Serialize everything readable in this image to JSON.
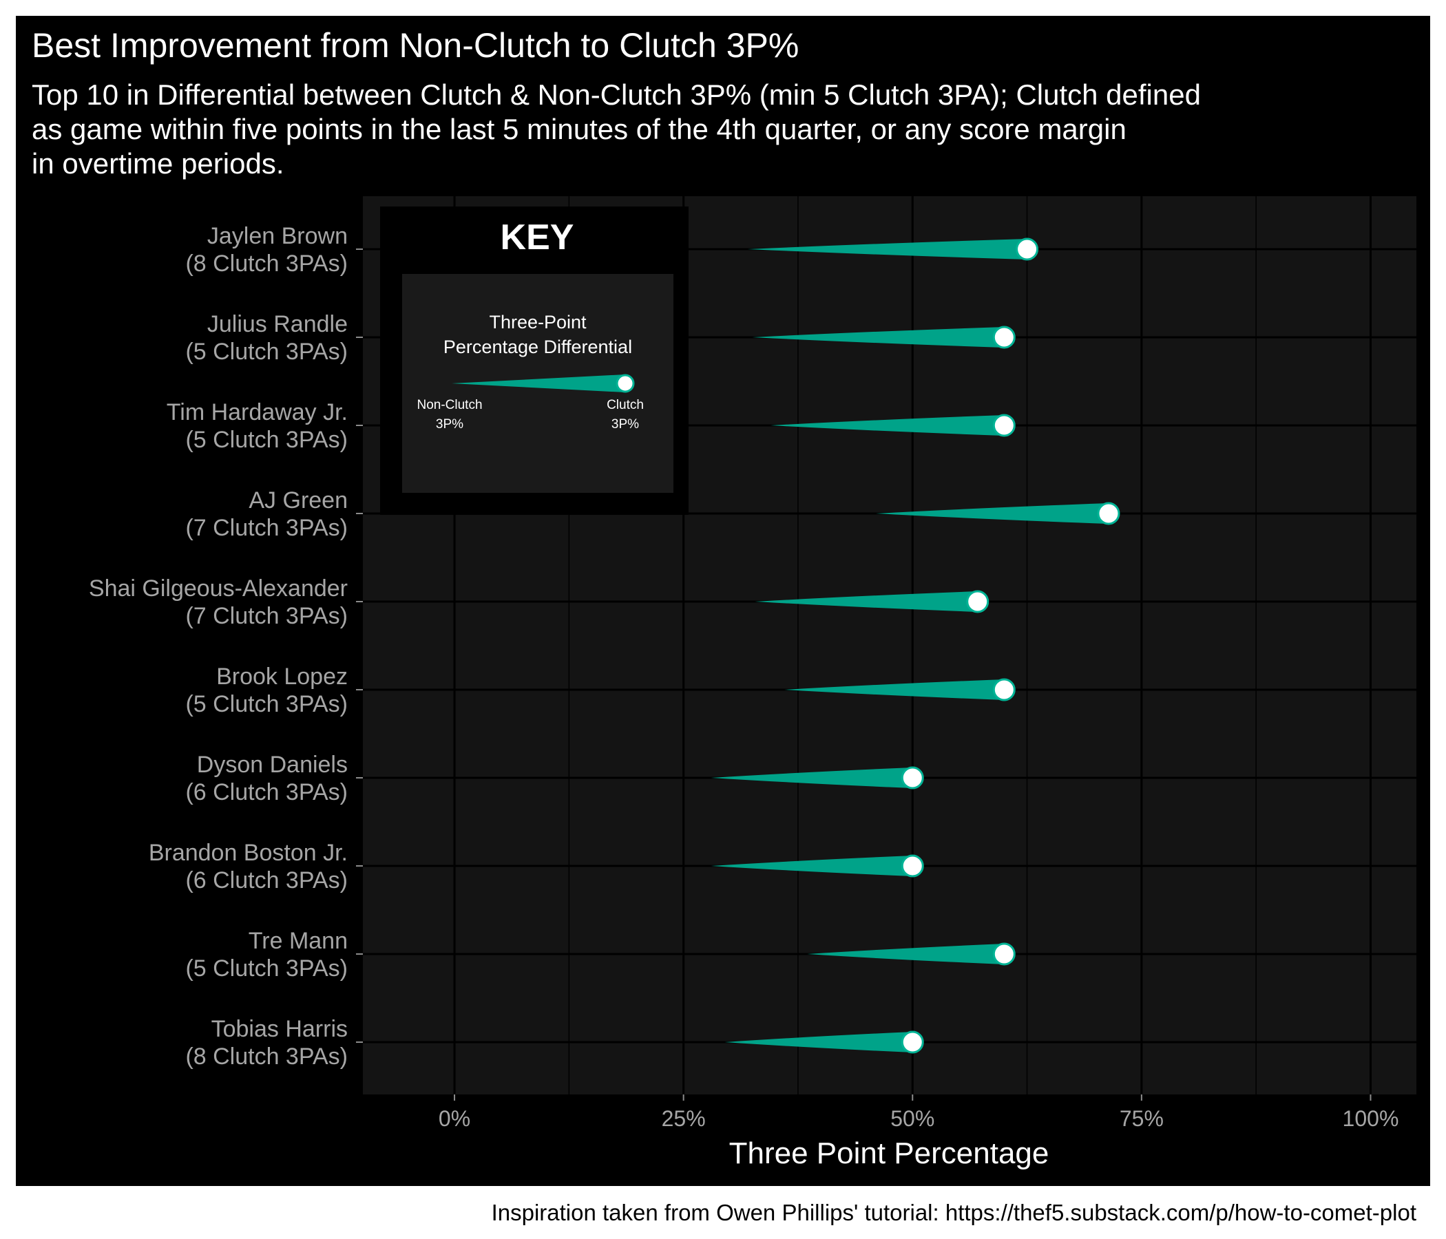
{
  "chart_data": {
    "type": "comet",
    "title": "Best Improvement from Non-Clutch to Clutch 3P%",
    "subtitle_lines": [
      "Top 10 in Differential between Clutch & Non-Clutch 3P% (min 5 Clutch 3PA); Clutch defined",
      "as game within five points in the last 5 minutes of the 4th quarter, or any score margin",
      "in overtime periods."
    ],
    "xlabel": "Three Point Percentage",
    "xlim": [
      -0.1,
      1.05
    ],
    "x_ticks": [
      {
        "value": 0,
        "label": "0%"
      },
      {
        "value": 0.25,
        "label": "25%"
      },
      {
        "value": 0.5,
        "label": "50%"
      },
      {
        "value": 0.75,
        "label": "75%"
      },
      {
        "value": 1.0,
        "label": "100%"
      }
    ],
    "caption": "Inspiration taken from Owen Phillips' tutorial: https://thef5.substack.com/p/how-to-comet-plot",
    "colors": {
      "figure_bg": "#000000",
      "panel_bg": "#141414",
      "grid": "#000000",
      "comet": "#00a389",
      "comet_edge": "#00b395",
      "point_fill": "#ffffff",
      "key_panel_bg": "#1a1a1a"
    },
    "players": [
      {
        "name": "Jaylen Brown",
        "note": "(8 Clutch 3PAs)",
        "non_clutch": 0.32,
        "clutch": 0.625
      },
      {
        "name": "Julius Randle",
        "note": "(5 Clutch 3PAs)",
        "non_clutch": 0.325,
        "clutch": 0.6
      },
      {
        "name": "Tim Hardaway Jr.",
        "note": "(5 Clutch 3PAs)",
        "non_clutch": 0.345,
        "clutch": 0.6
      },
      {
        "name": "AJ Green",
        "note": "(7 Clutch 3PAs)",
        "non_clutch": 0.46,
        "clutch": 0.714
      },
      {
        "name": "Shai Gilgeous-Alexander",
        "note": "(7 Clutch 3PAs)",
        "non_clutch": 0.328,
        "clutch": 0.571
      },
      {
        "name": "Brook Lopez",
        "note": "(5 Clutch 3PAs)",
        "non_clutch": 0.36,
        "clutch": 0.6
      },
      {
        "name": "Dyson Daniels",
        "note": "(6 Clutch 3PAs)",
        "non_clutch": 0.28,
        "clutch": 0.5
      },
      {
        "name": "Brandon Boston Jr.",
        "note": "(6 Clutch 3PAs)",
        "non_clutch": 0.28,
        "clutch": 0.5
      },
      {
        "name": "Tre Mann",
        "note": "(5 Clutch 3PAs)",
        "non_clutch": 0.385,
        "clutch": 0.6
      },
      {
        "name": "Tobias Harris",
        "note": "(8 Clutch 3PAs)",
        "non_clutch": 0.295,
        "clutch": 0.5
      }
    ],
    "key": {
      "title": "KEY",
      "heading_lines": [
        "Three-Point",
        "Percentage Differential"
      ],
      "start_label_lines": [
        "Non-Clutch",
        "3P%"
      ],
      "end_label_lines": [
        "Clutch",
        "3P%"
      ]
    }
  }
}
